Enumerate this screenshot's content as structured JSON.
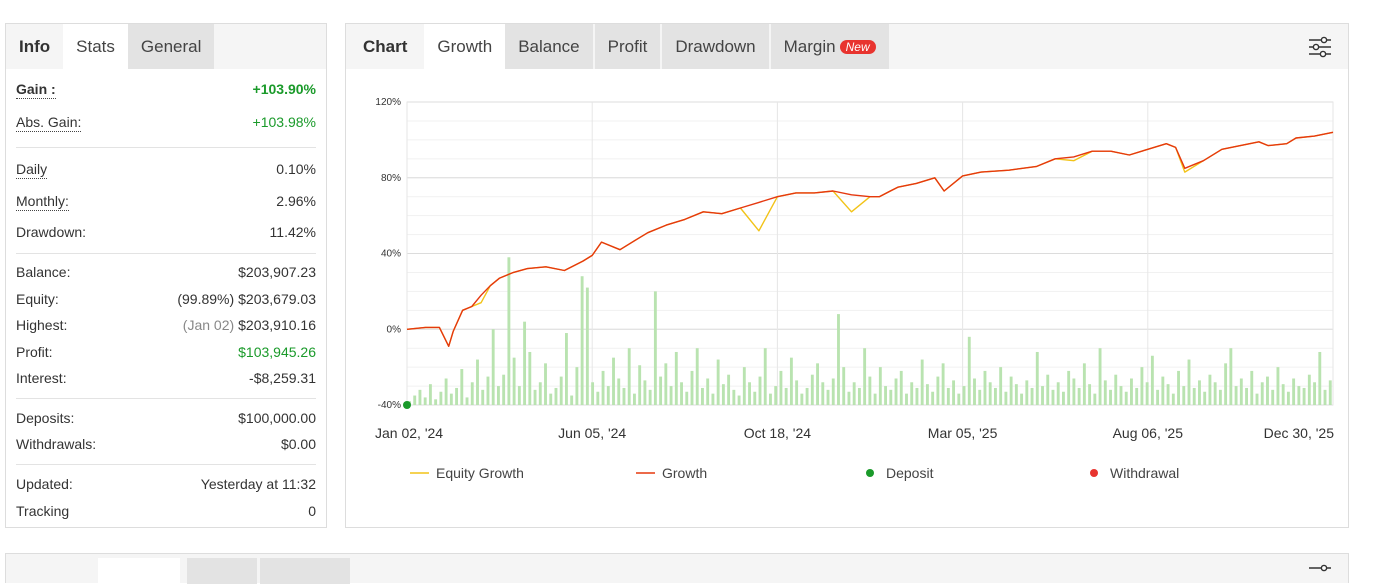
{
  "left_panel": {
    "tabs": [
      {
        "label": "Info"
      },
      {
        "label": "Stats"
      },
      {
        "label": "General"
      }
    ],
    "gain": {
      "label": "Gain :",
      "value": "+103.90%"
    },
    "abs_gain": {
      "label": "Abs. Gain:",
      "value": "+103.98%"
    },
    "daily": {
      "label": "Daily",
      "value": "0.10%"
    },
    "monthly": {
      "label": "Monthly:",
      "value": "2.96%"
    },
    "drawdown": {
      "label": "Drawdown:",
      "value": "11.42%"
    },
    "balance": {
      "label": "Balance:",
      "value": "$203,907.23"
    },
    "equity": {
      "label": "Equity:",
      "sub": "(99.89%)",
      "value": "$203,679.03"
    },
    "highest": {
      "label": "Highest:",
      "sub": "(Jan 02)",
      "value": "$203,910.16"
    },
    "profit": {
      "label": "Profit:",
      "value": "$103,945.26"
    },
    "interest": {
      "label": "Interest:",
      "value": "-$8,259.31"
    },
    "deposits": {
      "label": "Deposits:",
      "value": "$100,000.00"
    },
    "withdrawals": {
      "label": "Withdrawals:",
      "value": "$0.00"
    },
    "updated": {
      "label": "Updated:",
      "value": "Yesterday at 11:32"
    },
    "tracking": {
      "label": "Tracking",
      "value": "0"
    }
  },
  "chart_panel": {
    "title": "Chart",
    "tabs": [
      {
        "label": "Growth"
      },
      {
        "label": "Balance"
      },
      {
        "label": "Profit"
      },
      {
        "label": "Drawdown"
      },
      {
        "label": "Margin",
        "badge": "New"
      }
    ],
    "settings_icon": "sliders-icon"
  },
  "colors": {
    "growth": "#e5380f",
    "equity": "#f2c318",
    "volume_bars": "#b9e3b0",
    "deposit": "#1a9a2a",
    "withdrawal": "#e8342f",
    "gain_green": "#1a9a2a"
  },
  "chart_data": {
    "type": "line",
    "x_tick_labels": [
      "Jan 02, '24",
      "Jun 05, '24",
      "Oct 18, '24",
      "Mar 05, '25",
      "Aug 06, '25",
      "Dec 30, '25"
    ],
    "y_tick_labels": [
      "120%",
      "80%",
      "40%",
      "0%",
      "-40%"
    ],
    "y_ticks": [
      120,
      80,
      40,
      0,
      -40
    ],
    "ylim": [
      -40,
      120
    ],
    "grid": true,
    "legend_position": "bottom",
    "legend": [
      {
        "label": "Equity Growth",
        "marker": "line",
        "color": "#f2c318"
      },
      {
        "label": "Growth",
        "marker": "line",
        "color": "#e5380f"
      },
      {
        "label": "Deposit",
        "marker": "dot",
        "color": "#1a9a2a"
      },
      {
        "label": "Withdrawal",
        "marker": "dot",
        "color": "#e8342f"
      }
    ],
    "series": [
      {
        "name": "Growth",
        "x_frac": [
          0,
          0.02,
          0.035,
          0.045,
          0.05,
          0.06,
          0.07,
          0.08,
          0.09,
          0.1,
          0.115,
          0.13,
          0.15,
          0.17,
          0.19,
          0.2,
          0.21,
          0.23,
          0.25,
          0.26,
          0.28,
          0.3,
          0.32,
          0.34,
          0.36,
          0.38,
          0.4,
          0.42,
          0.44,
          0.46,
          0.48,
          0.5,
          0.51,
          0.53,
          0.55,
          0.57,
          0.58,
          0.6,
          0.62,
          0.65,
          0.68,
          0.7,
          0.72,
          0.74,
          0.76,
          0.78,
          0.8,
          0.82,
          0.83,
          0.84,
          0.86,
          0.88,
          0.9,
          0.91,
          0.92,
          0.93,
          0.95,
          0.96,
          0.98,
          1.0
        ],
        "y": [
          0,
          1,
          1,
          -9,
          -1,
          10,
          12,
          18,
          23,
          27,
          30,
          32,
          33,
          31,
          36,
          39,
          46,
          42,
          48,
          51,
          55,
          58,
          62,
          61,
          64,
          67,
          70,
          72,
          72,
          73,
          71,
          70,
          70,
          75,
          77,
          80,
          73,
          81,
          83,
          84,
          86,
          90,
          91,
          94,
          94,
          92,
          95,
          98,
          96,
          85,
          89,
          95,
          97,
          98,
          99,
          97,
          98,
          101,
          102,
          104
        ]
      },
      {
        "name": "Equity Growth",
        "x_frac": [
          0,
          0.02,
          0.035,
          0.045,
          0.05,
          0.06,
          0.07,
          0.08,
          0.09,
          0.1,
          0.115,
          0.13,
          0.15,
          0.17,
          0.19,
          0.2,
          0.21,
          0.23,
          0.25,
          0.26,
          0.28,
          0.3,
          0.32,
          0.34,
          0.36,
          0.38,
          0.4,
          0.42,
          0.44,
          0.46,
          0.48,
          0.5,
          0.51,
          0.53,
          0.55,
          0.57,
          0.58,
          0.6,
          0.62,
          0.65,
          0.68,
          0.7,
          0.72,
          0.74,
          0.76,
          0.78,
          0.8,
          0.82,
          0.83,
          0.84,
          0.86,
          0.88,
          0.9,
          0.91,
          0.92,
          0.93,
          0.95,
          0.96,
          0.98,
          1.0
        ],
        "y": [
          0,
          1,
          1,
          -9,
          -1,
          10,
          12,
          14,
          23,
          27,
          30,
          32,
          33,
          31,
          36,
          39,
          46,
          42,
          48,
          51,
          55,
          58,
          62,
          61,
          64,
          52,
          70,
          72,
          72,
          73,
          62,
          70,
          70,
          75,
          77,
          80,
          73,
          81,
          83,
          84,
          86,
          90,
          89,
          94,
          94,
          92,
          95,
          98,
          96,
          83,
          89,
          95,
          97,
          98,
          99,
          97,
          98,
          101,
          102,
          104
        ]
      }
    ],
    "deposits": [
      {
        "x_frac": 0,
        "y": -40
      }
    ],
    "volume_bars": [
      2,
      5,
      8,
      4,
      11,
      3,
      7,
      14,
      6,
      9,
      19,
      4,
      12,
      24,
      8,
      15,
      40,
      10,
      16,
      78,
      25,
      10,
      44,
      28,
      8,
      12,
      22,
      6,
      9,
      15,
      38,
      5,
      20,
      68,
      62,
      12,
      7,
      18,
      10,
      25,
      14,
      9,
      30,
      6,
      21,
      13,
      8,
      60,
      15,
      22,
      10,
      28,
      12,
      7,
      18,
      30,
      9,
      14,
      6,
      24,
      11,
      16,
      8,
      5,
      20,
      12,
      7,
      15,
      30,
      6,
      10,
      18,
      9,
      25,
      13,
      6,
      9,
      16,
      22,
      12,
      8,
      14,
      48,
      20,
      7,
      12,
      9,
      30,
      15,
      6,
      20,
      10,
      8,
      14,
      18,
      6,
      12,
      9,
      24,
      11,
      7,
      15,
      22,
      9,
      13,
      6,
      10,
      36,
      14,
      8,
      18,
      12,
      9,
      20,
      7,
      15,
      11,
      6,
      13,
      9,
      28,
      10,
      16,
      8,
      12,
      7,
      18,
      14,
      9,
      22,
      11,
      6,
      30,
      13,
      8,
      16,
      10,
      7,
      14,
      9,
      20,
      12,
      26,
      8,
      15,
      11,
      6,
      18,
      10,
      24,
      9,
      13,
      7,
      16,
      12,
      8,
      22,
      30,
      10,
      14,
      9,
      18,
      6,
      12,
      15,
      8,
      20,
      11,
      7,
      14,
      10,
      9,
      16,
      12,
      28,
      8,
      13
    ]
  }
}
